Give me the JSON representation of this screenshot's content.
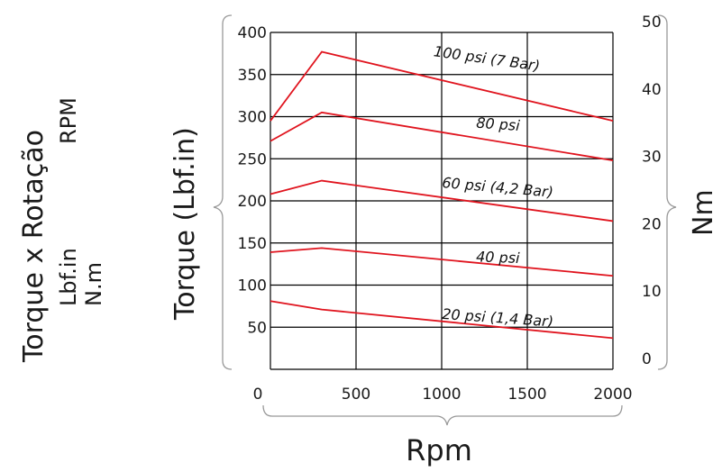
{
  "chart_data": {
    "type": "line",
    "title": "Torque x Rotação",
    "side_labels": {
      "line1": "Torque x Rotação",
      "line2a": "Lbf.in",
      "line2b": "RPM",
      "line3": "N.m"
    },
    "xlabel": "Rpm",
    "ylabel": "Torque (Lbf.in)",
    "y2label": "Nm",
    "xlim": [
      0,
      2000
    ],
    "ylim": [
      0,
      400
    ],
    "y2lim": [
      0,
      50
    ],
    "x_ticks": [
      0,
      500,
      1000,
      1500,
      2000
    ],
    "y_ticks": [
      50,
      100,
      150,
      200,
      250,
      300,
      350,
      400
    ],
    "y2_ticks": [
      0,
      10,
      20,
      30,
      40,
      50
    ],
    "x_grid": [
      0,
      500,
      1000,
      1500,
      2000
    ],
    "y_grid": [
      0,
      50,
      100,
      150,
      200,
      250,
      300,
      350,
      400
    ],
    "grid": true,
    "color": "#e0141e",
    "series": [
      {
        "name": "100 psi (7 Bar)",
        "x": [
          0,
          300,
          2000
        ],
        "y": [
          295,
          377,
          295
        ],
        "label_at": [
          950,
          372
        ],
        "label_angle": 8
      },
      {
        "name": "80 psi",
        "x": [
          0,
          300,
          2000
        ],
        "y": [
          271,
          305,
          248
        ],
        "label_at": [
          1200,
          287
        ],
        "label_angle": 4
      },
      {
        "name": "60 psi (4,2 Bar)",
        "x": [
          0,
          300,
          2000
        ],
        "y": [
          208,
          224,
          176
        ],
        "label_at": [
          1000,
          216
        ],
        "label_angle": 5
      },
      {
        "name": "40 psi",
        "x": [
          0,
          300,
          2000
        ],
        "y": [
          139,
          144,
          111
        ],
        "label_at": [
          1200,
          128
        ],
        "label_angle": 2
      },
      {
        "name": "20 psi (1,4 Bar)",
        "x": [
          0,
          300,
          2000
        ],
        "y": [
          81,
          71,
          37
        ],
        "label_at": [
          1000,
          60
        ],
        "label_angle": 4
      }
    ]
  }
}
